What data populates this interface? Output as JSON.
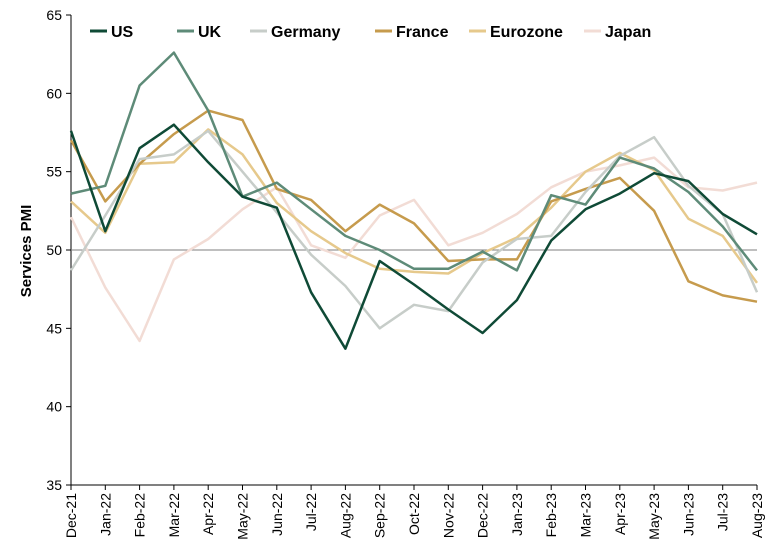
{
  "chart_data": {
    "type": "line",
    "ylabel": "Services PMI",
    "ylim": [
      35,
      65
    ],
    "yticks": [
      35,
      40,
      45,
      50,
      55,
      60,
      65
    ],
    "reference_line": 50,
    "legend_position": "top",
    "categories": [
      "Dec-21",
      "Jan-22",
      "Feb-22",
      "Mar-22",
      "Apr-22",
      "May-22",
      "Jun-22",
      "Jul-22",
      "Aug-22",
      "Sep-22",
      "Oct-22",
      "Nov-22",
      "Dec-22",
      "Jan-23",
      "Feb-23",
      "Mar-23",
      "Apr-23",
      "May-23",
      "Jun-23",
      "Jul-23",
      "Aug-23"
    ],
    "series": [
      {
        "name": "US",
        "color": "#0f4a36",
        "values": [
          57.6,
          51.2,
          56.5,
          58.0,
          55.6,
          53.4,
          52.7,
          47.3,
          43.7,
          49.3,
          47.8,
          46.2,
          44.7,
          46.8,
          50.6,
          52.6,
          53.6,
          54.9,
          54.4,
          52.3,
          51.0
        ]
      },
      {
        "name": "UK",
        "color": "#5e8b78",
        "values": [
          53.6,
          54.1,
          60.5,
          62.6,
          58.9,
          53.4,
          54.3,
          52.6,
          50.9,
          50.0,
          48.8,
          48.8,
          49.9,
          48.7,
          53.5,
          52.9,
          55.9,
          55.2,
          53.7,
          51.5,
          48.7
        ]
      },
      {
        "name": "Germany",
        "color": "#c7cdc9",
        "values": [
          48.7,
          52.2,
          55.8,
          56.1,
          57.6,
          55.0,
          52.4,
          49.7,
          47.7,
          45.0,
          46.5,
          46.1,
          49.2,
          50.7,
          50.9,
          53.7,
          56.0,
          57.2,
          54.1,
          52.3,
          47.3
        ]
      },
      {
        "name": "France",
        "color": "#c69b4d",
        "values": [
          57.0,
          53.1,
          55.5,
          57.4,
          58.9,
          58.3,
          53.9,
          53.2,
          51.2,
          52.9,
          51.7,
          49.3,
          49.4,
          49.4,
          53.1,
          53.9,
          54.6,
          52.5,
          48.0,
          47.1,
          46.7
        ]
      },
      {
        "name": "Eurozone",
        "color": "#e6c98c",
        "values": [
          53.1,
          51.1,
          55.5,
          55.6,
          57.7,
          56.1,
          53.0,
          51.2,
          49.8,
          48.8,
          48.6,
          48.5,
          49.8,
          50.8,
          52.7,
          55.0,
          56.2,
          55.1,
          52.0,
          50.9,
          47.9
        ]
      },
      {
        "name": "Japan",
        "color": "#f2dcd5",
        "values": [
          52.1,
          47.6,
          44.2,
          49.4,
          50.7,
          52.6,
          54.0,
          50.3,
          49.5,
          52.2,
          53.2,
          50.3,
          51.1,
          52.3,
          54.0,
          55.0,
          55.4,
          55.9,
          54.0,
          53.8,
          54.3
        ]
      }
    ]
  }
}
